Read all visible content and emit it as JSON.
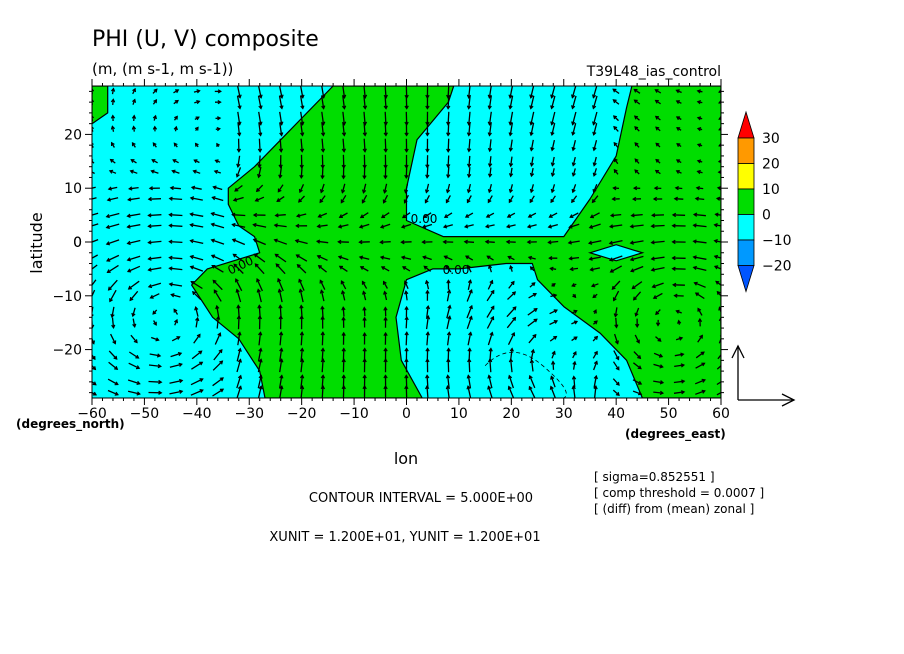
{
  "chart_data": {
    "type": "contour-vector",
    "title": "PHI (U, V) composite",
    "subtitle": "(m, (m s-1, m s-1))",
    "run_label": "T39L48_ias_control",
    "xlabel": "lon",
    "ylabel": "latitude",
    "x_unit_label": "(degrees_east)",
    "y_unit_label": "(degrees_north)",
    "xlim": [
      -60,
      60
    ],
    "ylim": [
      -29,
      29
    ],
    "x_ticks": [
      -60,
      -50,
      -40,
      -30,
      -20,
      -10,
      0,
      10,
      20,
      30,
      40,
      50,
      60
    ],
    "y_ticks": [
      -20,
      -10,
      0,
      10,
      20
    ],
    "contour_label": "0.00",
    "contour_interval_text": "CONTOUR INTERVAL = 5.000E+00",
    "unit_text": "XUNIT = 1.200E+01, YUNIT = 1.200E+01",
    "info_lines": [
      "[ sigma=0.852551 ]",
      "[ comp threshold = 0.0007 ]",
      "[ (diff) from (mean) zonal ]"
    ],
    "colorbar": {
      "levels": [
        "30",
        "20",
        "10",
        "0",
        "-10",
        "-20"
      ],
      "colors": [
        "#ff0000",
        "#ff9900",
        "#ffff00",
        "#00dd00",
        "#00ffff",
        "#0099ff",
        "#0055ff"
      ]
    },
    "fill_colors": {
      "positive": "#00dd00",
      "negative": "#00ffff"
    },
    "green_regions": [
      [
        [
          -60,
          29
        ],
        [
          -57,
          29
        ],
        [
          -57,
          24
        ],
        [
          -60,
          22
        ]
      ],
      [
        [
          -14,
          29
        ],
        [
          9,
          29
        ],
        [
          8,
          26
        ],
        [
          2,
          19
        ],
        [
          0,
          10
        ],
        [
          0,
          4
        ],
        [
          7,
          1
        ],
        [
          30,
          1
        ],
        [
          35,
          8
        ],
        [
          40,
          16
        ],
        [
          42,
          25
        ],
        [
          43,
          29
        ],
        [
          60,
          29
        ],
        [
          60,
          -29
        ],
        [
          45,
          -29
        ],
        [
          42,
          -22
        ],
        [
          37,
          -17
        ],
        [
          30,
          -12
        ],
        [
          25,
          -7
        ],
        [
          24,
          -4
        ],
        [
          19,
          -4
        ],
        [
          10,
          -5
        ],
        [
          5,
          -5
        ],
        [
          0,
          -7
        ],
        [
          -2,
          -14
        ],
        [
          -1,
          -22
        ],
        [
          3,
          -29
        ],
        [
          -27,
          -29
        ],
        [
          -28,
          -24
        ],
        [
          -32,
          -18
        ],
        [
          -37,
          -14
        ],
        [
          -41,
          -8
        ],
        [
          -38,
          -5
        ],
        [
          -28,
          -2
        ],
        [
          -29,
          1
        ],
        [
          -32,
          3
        ],
        [
          -34,
          7
        ],
        [
          -34,
          10
        ],
        [
          -29,
          14
        ],
        [
          -24,
          19
        ]
      ]
    ],
    "cyan_regions": [
      [
        [
          35,
          -2
        ],
        [
          40,
          -0.5
        ],
        [
          45,
          -2
        ],
        [
          40,
          -3.5
        ]
      ]
    ],
    "vectors": {
      "x": [
        -60,
        -56,
        -52,
        -48,
        -44,
        -40,
        -36,
        -32,
        -28,
        -24,
        -20,
        -16,
        -12,
        -8,
        -4,
        0,
        4,
        8,
        12,
        16,
        20,
        24,
        28,
        32,
        36,
        40,
        44,
        48,
        52,
        56,
        60
      ],
      "y": [
        -28,
        -26,
        -23,
        -21,
        -18,
        -15,
        -13,
        -10,
        -8,
        -5,
        -3,
        0,
        3,
        5,
        8,
        10,
        13,
        15,
        18,
        21,
        23,
        26,
        28
      ],
      "pattern": "cyclonic-southwest, convergent-equator, anticyclonic-southeast"
    },
    "reference_vector": {
      "u": 1,
      "v": 1
    }
  }
}
